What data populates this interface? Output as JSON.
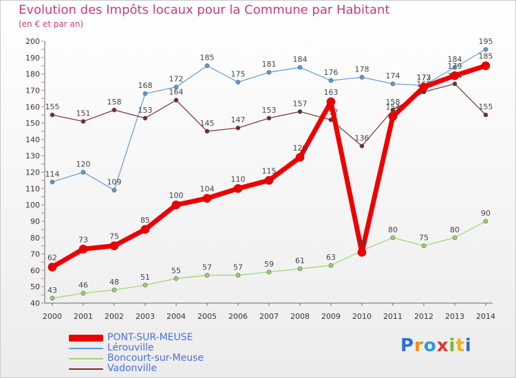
{
  "title": "Evolution des Impôts locaux pour la Commune par Habitant",
  "subtitle": "(en € et par an)",
  "logo": "Proxiti",
  "chart_data": {
    "type": "line",
    "title": "Evolution des Impôts locaux pour la Commune par Habitant",
    "subtitle": "(en € et par an)",
    "xlabel": "",
    "ylabel": "",
    "x": [
      "2000",
      "2001",
      "2002",
      "2003",
      "2004",
      "2005",
      "2006",
      "2007",
      "2008",
      "2009",
      "2010",
      "2011",
      "2012",
      "2013",
      "2014"
    ],
    "ylim": [
      40,
      200
    ],
    "yticks": [
      40,
      50,
      60,
      70,
      80,
      90,
      100,
      110,
      120,
      130,
      140,
      150,
      160,
      170,
      180,
      190,
      200
    ],
    "grid": false,
    "legend_position": "bottom-left",
    "series": [
      {
        "name": "Lérouville",
        "color": "#5b9bd5",
        "values": [
          114,
          120,
          109,
          168,
          172,
          185,
          175,
          181,
          184,
          176,
          178,
          174,
          173,
          184,
          195
        ]
      },
      {
        "name": "Vadonville",
        "color": "#7a2a2a",
        "values": [
          155,
          151,
          158,
          153,
          164,
          145,
          147,
          153,
          157,
          152,
          136,
          158,
          169,
          174,
          155
        ]
      },
      {
        "name": "Boncourt-sur-Meuse",
        "color": "#9ad46a",
        "values": [
          43,
          46,
          48,
          51,
          55,
          57,
          57,
          59,
          61,
          63,
          72,
          80,
          75,
          80,
          90
        ]
      },
      {
        "name": "PONT-SUR-MEUSE",
        "color": "#ee0000",
        "values": [
          62,
          73,
          75,
          85,
          100,
          104,
          110,
          115,
          129,
          163,
          71,
          154,
          172,
          179,
          185
        ]
      }
    ]
  },
  "legend": [
    {
      "name": "PONT-SUR-MEUSE",
      "color": "#ee0000"
    },
    {
      "name": "Lérouville",
      "color": "#5b9bd5"
    },
    {
      "name": "Boncourt-sur-Meuse",
      "color": "#9ad46a"
    },
    {
      "name": "Vadonville",
      "color": "#7a2a2a"
    }
  ]
}
